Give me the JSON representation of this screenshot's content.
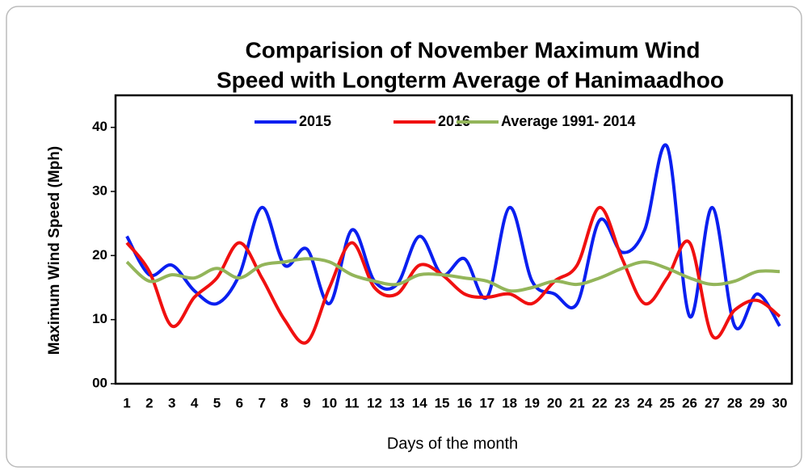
{
  "chart_data": {
    "type": "line",
    "title": [
      "Comparision of November Maximum Wind",
      "Speed with Longterm Average of Hanimaadhoo"
    ],
    "x_label": "Days of the month",
    "y_label": "Maximum Wind Speed (Mph)",
    "categories": [
      "1",
      "2",
      "3",
      "4",
      "5",
      "6",
      "7",
      "8",
      "9",
      "10",
      "11",
      "12",
      "13",
      "14",
      "15",
      "16",
      "17",
      "18",
      "19",
      "20",
      "21",
      "22",
      "23",
      "24",
      "25",
      "26",
      "27",
      "28",
      "29",
      "30"
    ],
    "series": [
      {
        "name": "2015",
        "color": "#0a1ff0",
        "values": [
          23,
          17,
          18.5,
          14.5,
          12.5,
          17,
          27.5,
          18.5,
          21,
          12.5,
          24,
          16,
          15.5,
          23,
          17,
          19.5,
          13.5,
          27.5,
          16,
          14,
          12.5,
          25.5,
          20.5,
          24,
          37,
          10.5,
          27.5,
          9,
          14,
          9
        ]
      },
      {
        "name": "2016",
        "color": "#f01010",
        "values": [
          22,
          17.5,
          9,
          13.5,
          16.5,
          22,
          16.5,
          10,
          6.5,
          15,
          22,
          15,
          14,
          18.5,
          17,
          14,
          13.5,
          14,
          12.5,
          16,
          18.5,
          27.5,
          19.5,
          12.5,
          16.5,
          22,
          7.5,
          11.5,
          13,
          10.5
        ]
      },
      {
        "name": "Average 1991- 2014",
        "color": "#93b55a",
        "values": [
          19,
          16,
          17,
          16.5,
          18,
          16.5,
          18.5,
          19,
          19.5,
          19,
          17,
          16,
          15.5,
          17,
          17,
          16.5,
          16,
          14.5,
          15,
          16,
          15.5,
          16.5,
          18,
          19,
          18,
          16.5,
          15.5,
          16,
          17.5,
          17.5
        ]
      }
    ],
    "ylim": [
      0,
      45
    ],
    "yticks": [
      {
        "value": 0,
        "label": "00"
      },
      10,
      20,
      30,
      40
    ],
    "legend": "top",
    "grid": false
  }
}
